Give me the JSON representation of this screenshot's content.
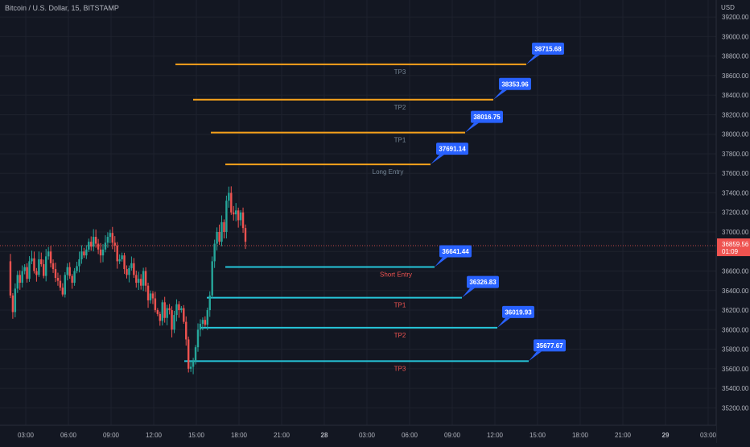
{
  "header": {
    "symbol_title": "Bitcoin / U.S. Dollar, 15, BITSTAMP",
    "currency": "USD"
  },
  "price_axis": {
    "ticks": [
      "39200.00",
      "39000.00",
      "38800.00",
      "38600.00",
      "38400.00",
      "38200.00",
      "38000.00",
      "37800.00",
      "37600.00",
      "37400.00",
      "37200.00",
      "37000.00",
      "36800.00",
      "36600.00",
      "36400.00",
      "36200.00",
      "36000.00",
      "35800.00",
      "35600.00",
      "35400.00",
      "35200.00"
    ],
    "last_price": "36859.56",
    "countdown": "01:09"
  },
  "time_axis": {
    "ticks": [
      "03:00",
      "06:00",
      "09:00",
      "12:00",
      "15:00",
      "18:00",
      "21:00",
      "28",
      "03:00",
      "06:00",
      "09:00",
      "12:00",
      "15:00",
      "18:00",
      "21:00",
      "29",
      "03:00"
    ]
  },
  "colors": {
    "background": "#131722",
    "up": "#26a69a",
    "down": "#ef5350",
    "long_line": "#f7a21b",
    "short_line": "#26c6da",
    "callout": "#2962ff",
    "label_long": "#758696",
    "label_short": "#ef5350"
  },
  "chart_data": {
    "type": "candlestick",
    "title": "Bitcoin / U.S. Dollar, 15, BITSTAMP",
    "y_axis": {
      "label": "USD",
      "range": [
        35100,
        39300
      ],
      "grid": true
    },
    "x_axis": {
      "label": "",
      "grid": true
    },
    "last_price": 36859.56,
    "levels": [
      {
        "label": "TP3",
        "price": 38715.68,
        "side": "long"
      },
      {
        "label": "TP2",
        "price": 38353.96,
        "side": "long"
      },
      {
        "label": "TP1",
        "price": 38016.75,
        "side": "long"
      },
      {
        "label": "Long Entry",
        "price": 37691.14,
        "side": "long"
      },
      {
        "label": "Short Entry",
        "price": 36641.44,
        "side": "short"
      },
      {
        "label": "TP1",
        "price": 36326.83,
        "side": "short"
      },
      {
        "label": "TP2",
        "price": 36019.93,
        "side": "short"
      },
      {
        "label": "TP3",
        "price": 35677.67,
        "side": "short"
      }
    ],
    "closes": [
      36700,
      36350,
      36180,
      36420,
      36560,
      36480,
      36600,
      36640,
      36520,
      36700,
      36730,
      36600,
      36560,
      36720,
      36670,
      36550,
      36750,
      36800,
      36680,
      36620,
      36530,
      36500,
      36430,
      36360,
      36560,
      36640,
      36550,
      36480,
      36600,
      36650,
      36720,
      36800,
      36760,
      36820,
      36900,
      36850,
      36950,
      36880,
      36820,
      36760,
      36820,
      36890,
      36950,
      36990,
      36890,
      36860,
      36700,
      36720,
      36760,
      36620,
      36560,
      36630,
      36680,
      36560,
      36480,
      36520,
      36450,
      36600,
      36450,
      36300,
      36370,
      36320,
      36200,
      36160,
      36090,
      36280,
      36120,
      36220,
      36200,
      36000,
      36150,
      36260,
      36200,
      36220,
      36080,
      35900,
      35600,
      35620,
      35680,
      35820,
      36000,
      36060,
      36100,
      36050,
      36200,
      36350,
      36700,
      36880,
      37000,
      36900,
      37100,
      37000,
      37320,
      37400,
      37200,
      37180,
      37220,
      37120,
      37200,
      37040,
      36900
    ]
  }
}
